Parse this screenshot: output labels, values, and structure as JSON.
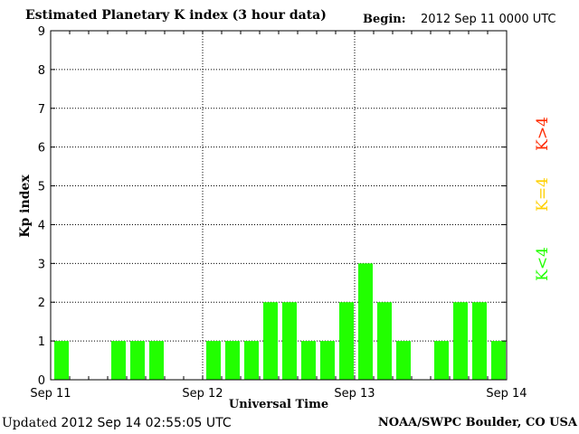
{
  "header": {
    "title": "Estimated Planetary K index (3 hour data)",
    "begin_label": "Begin:",
    "begin_value": "2012 Sep 11 0000 UTC"
  },
  "footer": {
    "updated_label": "Updated",
    "updated_value": "2012 Sep 14 02:55:05 UTC",
    "credit": "NOAA/SWPC Boulder, CO USA"
  },
  "legend": {
    "high": {
      "label": "K>4",
      "color": "#ff2a00"
    },
    "equal": {
      "label": "K=4",
      "color": "#ffd000"
    },
    "low": {
      "label": "K<4",
      "color": "#22ff00"
    }
  },
  "chart_data": {
    "type": "bar",
    "xlabel": "Universal Time",
    "ylabel": "Kp index",
    "ylim": [
      0,
      9
    ],
    "yticks": [
      "0",
      "1",
      "2",
      "3",
      "4",
      "5",
      "6",
      "7",
      "8",
      "9"
    ],
    "xticks": [
      "Sep 11",
      "Sep 12",
      "Sep 13",
      "Sep 14"
    ],
    "interval_hours": 3,
    "values": [
      1,
      0,
      0,
      1,
      1,
      1,
      0,
      0,
      1,
      1,
      1,
      2,
      2,
      1,
      1,
      2,
      3,
      2,
      1,
      0,
      1,
      2,
      2,
      1
    ],
    "grid": true,
    "bar_color": "#22ff00"
  }
}
